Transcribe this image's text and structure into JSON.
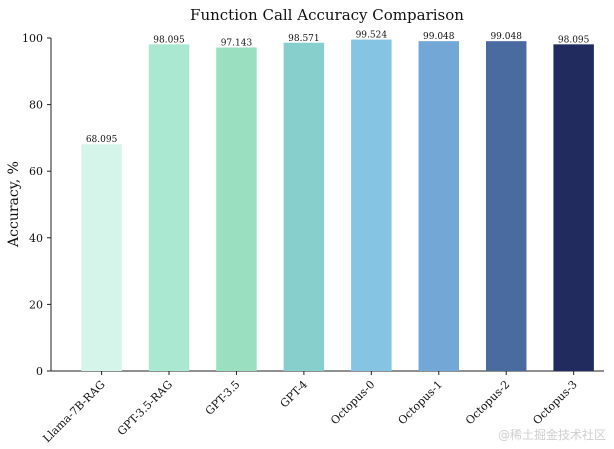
{
  "chart_data": {
    "type": "bar",
    "title": "Function Call Accuracy Comparison",
    "xlabel": "",
    "ylabel": "Accuracy, %",
    "ylim": [
      0,
      100
    ],
    "yticks": [
      "0",
      "20",
      "40",
      "60",
      "80",
      "100"
    ],
    "grid": false,
    "categories": [
      "Llama-7B-RAG",
      "GPT-3.5-RAG",
      "GPT-3.5",
      "GPT-4",
      "Octopus-0",
      "Octopus-1",
      "Octopus-2",
      "Octopus-3"
    ],
    "values": [
      68.095,
      98.095,
      97.143,
      98.571,
      99.524,
      99.048,
      99.048,
      98.095
    ],
    "value_labels": [
      "68.095",
      "98.095",
      "97.143",
      "98.571",
      "99.524",
      "99.048",
      "99.048",
      "98.095"
    ],
    "colors": [
      "#d6f5ea",
      "#abe8d2",
      "#99dfc0",
      "#86cfcc",
      "#85c4e2",
      "#73a7d5",
      "#4a6ba0",
      "#222b5e"
    ]
  },
  "watermark": "@稀土掘金技术社区"
}
